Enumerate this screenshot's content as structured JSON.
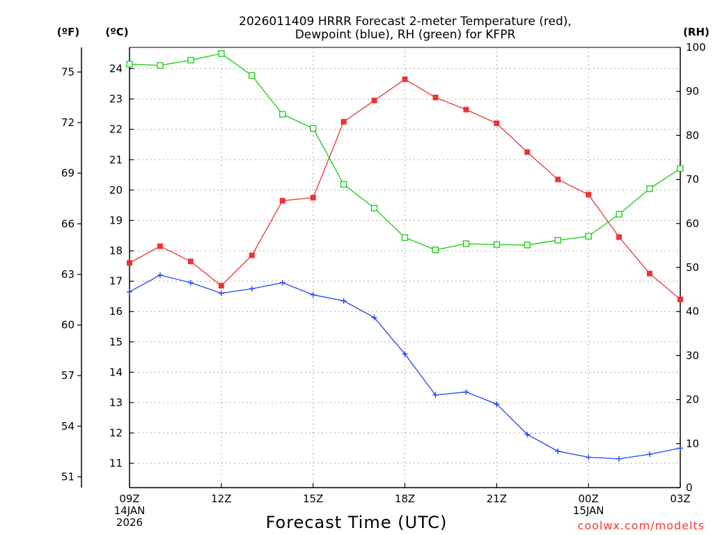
{
  "title_line1": "2026011409 HRRR Forecast 2-meter Temperature (red),",
  "title_line2": "Dewpoint (blue), RH (green) for KFPR",
  "unit_f": "(ºF)",
  "unit_c": "(ºC)",
  "unit_rh": "(RH)",
  "xlabel": "Forecast Time (UTC)",
  "credit": "coolwx.com/modelts",
  "colors": {
    "temperature": "#ee3333",
    "dewpoint": "#2244ee",
    "rh": "#11cc11",
    "grid": "#aaaaaa"
  },
  "chart_data": {
    "type": "line",
    "title": "2026011409 HRRR Forecast 2-meter Temperature (red), Dewpoint (blue), RH (green) for KFPR",
    "xlabel": "Forecast Time (UTC)",
    "x_hours": [
      0,
      1,
      2,
      3,
      4,
      5,
      6,
      7,
      8,
      9,
      10,
      11,
      12,
      13,
      14,
      15,
      16,
      17,
      18
    ],
    "x_ticks": [
      {
        "hour": 0,
        "lines": [
          "09Z",
          "14JAN",
          "2026"
        ]
      },
      {
        "hour": 3,
        "lines": [
          "12Z"
        ]
      },
      {
        "hour": 6,
        "lines": [
          "15Z"
        ]
      },
      {
        "hour": 9,
        "lines": [
          "18Z"
        ]
      },
      {
        "hour": 12,
        "lines": [
          "21Z"
        ]
      },
      {
        "hour": 15,
        "lines": [
          "00Z",
          "15JAN"
        ]
      },
      {
        "hour": 18,
        "lines": [
          "03Z"
        ]
      }
    ],
    "xlim": [
      0,
      18
    ],
    "celsius_axis": {
      "ylim": [
        10.2,
        24.7
      ],
      "ticks": [
        11,
        12,
        13,
        14,
        15,
        16,
        17,
        18,
        19,
        20,
        21,
        22,
        23,
        24
      ]
    },
    "fahrenheit_axis": {
      "ticks": [
        51,
        54,
        57,
        60,
        63,
        66,
        69,
        72,
        75
      ]
    },
    "rh_axis": {
      "ylim": [
        0,
        100
      ],
      "ticks": [
        0,
        10,
        20,
        30,
        40,
        50,
        60,
        70,
        80,
        90,
        100
      ]
    },
    "series": [
      {
        "name": "Temperature",
        "unit": "C",
        "axis": "celsius",
        "marker": "filled-square",
        "values": [
          17.6,
          18.15,
          17.65,
          16.85,
          17.85,
          19.65,
          19.75,
          22.25,
          22.95,
          23.65,
          23.05,
          22.65,
          22.2,
          21.25,
          20.35,
          19.85,
          18.45,
          17.25,
          16.4
        ]
      },
      {
        "name": "Dewpoint",
        "unit": "C",
        "axis": "celsius",
        "marker": "plus",
        "values": [
          16.65,
          17.2,
          16.95,
          16.6,
          16.75,
          16.95,
          16.55,
          16.35,
          15.8,
          14.6,
          13.25,
          13.35,
          12.95,
          11.95,
          11.4,
          11.2,
          11.15,
          11.3,
          11.5
        ]
      },
      {
        "name": "RH",
        "unit": "%",
        "axis": "rh",
        "marker": "open-square",
        "values": [
          96.2,
          95.9,
          97.1,
          98.6,
          93.6,
          84.8,
          81.6,
          68.9,
          63.5,
          56.8,
          54.0,
          55.4,
          55.2,
          55.1,
          56.2,
          57.1,
          62.1,
          67.9,
          72.5
        ]
      }
    ]
  }
}
